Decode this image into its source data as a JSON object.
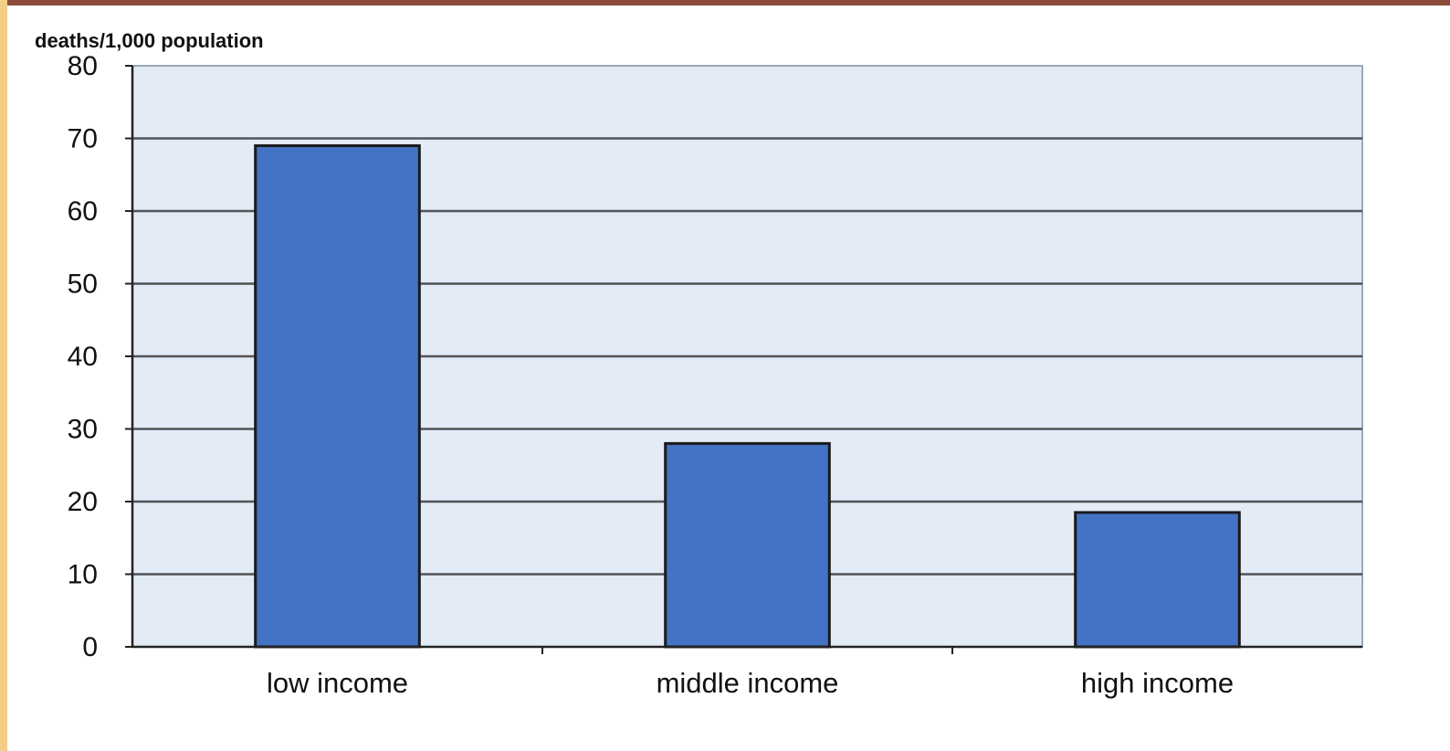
{
  "chart_data": {
    "type": "bar",
    "title": "",
    "xlabel": "",
    "ylabel": "deaths/1,000 population",
    "categories": [
      "low income",
      "middle income",
      "high income"
    ],
    "values": [
      69,
      28,
      18.5
    ],
    "ylim": [
      0,
      80
    ],
    "yticks": [
      "0",
      "10",
      "20",
      "30",
      "40",
      "50",
      "60",
      "70",
      "80"
    ],
    "grid": true,
    "legend": "none",
    "colors": {
      "bar": "#4472c4",
      "bar_outline": "#1a1a1a",
      "plot_bg": "#e2ebf6",
      "grid": "#3a3a3a"
    }
  }
}
